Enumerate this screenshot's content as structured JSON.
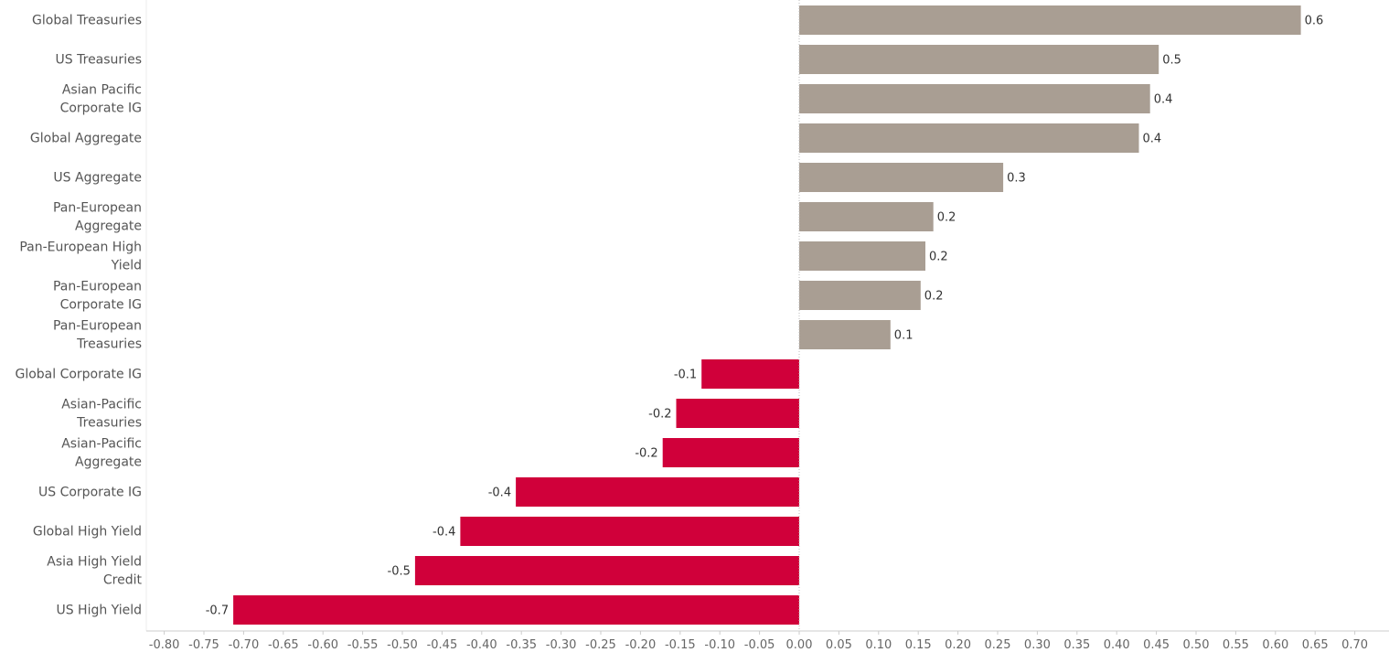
{
  "chart_data": {
    "type": "bar",
    "orientation": "horizontal",
    "title": "",
    "xlabel": "",
    "ylabel": "",
    "xlim": [
      -0.82,
      0.72
    ],
    "grid": false,
    "legend": "none",
    "colors": {
      "positive": "#a99e93",
      "negative": "#d0003a",
      "zero_line": "#bbbbbb",
      "axis": "#cccccc"
    },
    "categories": [
      [
        "Global Treasuries"
      ],
      [
        "US Treasuries"
      ],
      [
        "Asian Pacific",
        "Corporate IG"
      ],
      [
        "Global Aggregate"
      ],
      [
        "US Aggregate"
      ],
      [
        "Pan-European",
        "Aggregate"
      ],
      [
        "Pan-European High",
        "Yield"
      ],
      [
        "Pan-European",
        "Corporate IG"
      ],
      [
        "Pan-European",
        "Treasuries"
      ],
      [
        "Global Corporate IG"
      ],
      [
        "Asian-Pacific",
        "Treasuries"
      ],
      [
        "Asian-Pacific",
        "Aggregate"
      ],
      [
        "US Corporate IG"
      ],
      [
        "Global High Yield"
      ],
      [
        "Asia High Yield",
        "Credit"
      ],
      [
        "US High Yield"
      ]
    ],
    "values": [
      0.632,
      0.453,
      0.442,
      0.428,
      0.257,
      0.169,
      0.159,
      0.153,
      0.115,
      -0.123,
      -0.155,
      -0.172,
      -0.357,
      -0.427,
      -0.484,
      -0.713
    ],
    "data_labels": [
      "0.6",
      "0.5",
      "0.4",
      "0.4",
      "0.3",
      "0.2",
      "0.2",
      "0.2",
      "0.1",
      "-0.1",
      "-0.2",
      "-0.2",
      "-0.4",
      "-0.4",
      "-0.5",
      "-0.7"
    ],
    "x_ticks": [
      -0.8,
      -0.75,
      -0.7,
      -0.65,
      -0.6,
      -0.55,
      -0.5,
      -0.45,
      -0.4,
      -0.35,
      -0.3,
      -0.25,
      -0.2,
      -0.15,
      -0.1,
      -0.05,
      0.0,
      0.05,
      0.1,
      0.15,
      0.2,
      0.25,
      0.3,
      0.35,
      0.4,
      0.45,
      0.5,
      0.55,
      0.6,
      0.65,
      0.7
    ],
    "x_tick_labels": [
      "-0.80",
      "-0.75",
      "-0.70",
      "-0.65",
      "-0.60",
      "-0.55",
      "-0.50",
      "-0.45",
      "-0.40",
      "-0.35",
      "-0.30",
      "-0.25",
      "-0.20",
      "-0.15",
      "-0.10",
      "-0.05",
      "0.00",
      "0.05",
      "0.10",
      "0.15",
      "0.20",
      "0.25",
      "0.30",
      "0.35",
      "0.40",
      "0.45",
      "0.50",
      "0.55",
      "0.60",
      "0.65",
      "0.70"
    ]
  }
}
